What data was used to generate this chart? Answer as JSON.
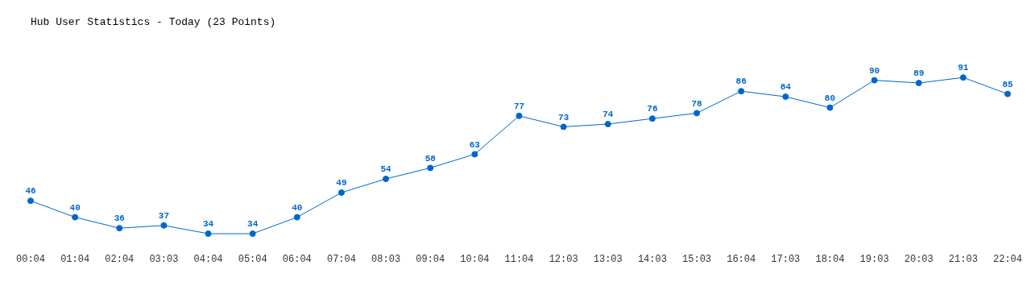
{
  "chart_data": {
    "type": "line",
    "title": "Hub User Statistics - Today (23 Points)",
    "categories": [
      "00:04",
      "01:04",
      "02:04",
      "03:03",
      "04:04",
      "05:04",
      "06:04",
      "07:04",
      "08:03",
      "09:04",
      "10:04",
      "11:04",
      "12:03",
      "13:03",
      "14:03",
      "15:03",
      "16:04",
      "17:03",
      "18:04",
      "19:03",
      "20:03",
      "21:03",
      "22:04"
    ],
    "values": [
      46,
      40,
      36,
      37,
      34,
      34,
      40,
      49,
      54,
      58,
      63,
      77,
      73,
      74,
      76,
      78,
      86,
      84,
      80,
      90,
      89,
      91,
      85
    ],
    "color": "#0066cc",
    "data_labels": true,
    "marker": "circle",
    "grid": false,
    "legend": false
  }
}
